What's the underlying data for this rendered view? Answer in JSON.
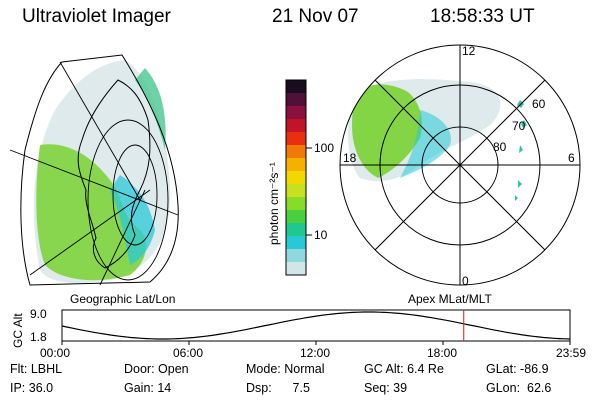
{
  "header": {
    "instrument": "Ultraviolet Imager",
    "date": "21 Nov 07",
    "time": "18:58:33 UT"
  },
  "left_panel": {
    "caption": "Geographic Lat/Lon"
  },
  "right_panel": {
    "caption": "Apex MLat/MLT",
    "mlt_labels": [
      "12",
      "18",
      "6",
      "0"
    ],
    "lat_labels": [
      "60",
      "70",
      "80"
    ]
  },
  "colorbar": {
    "unit_label": "photon cm⁻²s⁻¹",
    "tick_labels": [
      "100",
      "10"
    ],
    "colors": [
      "#1a0b20",
      "#50103a",
      "#8a1040",
      "#c01428",
      "#e83010",
      "#f07a08",
      "#f5b000",
      "#f0d800",
      "#c8e020",
      "#86dc28",
      "#48d040",
      "#20c890",
      "#28c8d8",
      "#90d8e0",
      "#d0e6e8"
    ]
  },
  "altitude_strip": {
    "axis_label": "GC Alt",
    "y_top": "9.0",
    "y_bottom": "1.8",
    "x_ticks": [
      "00:00",
      "06:00",
      "12:00",
      "18:00",
      "23:59"
    ],
    "current_hour": 18.98,
    "marker_color": "#cc2020"
  },
  "info": {
    "row1": [
      "Flt: LBHL",
      "Door: Open",
      "Mode: Normal",
      "GC Alt: 6.4 Re",
      "GLat: -86.9"
    ],
    "row2": [
      "IP: 36.0",
      "Gain: 14",
      "Dsp:      7.5",
      "Seq: 39",
      "GLon:  62.6"
    ]
  }
}
